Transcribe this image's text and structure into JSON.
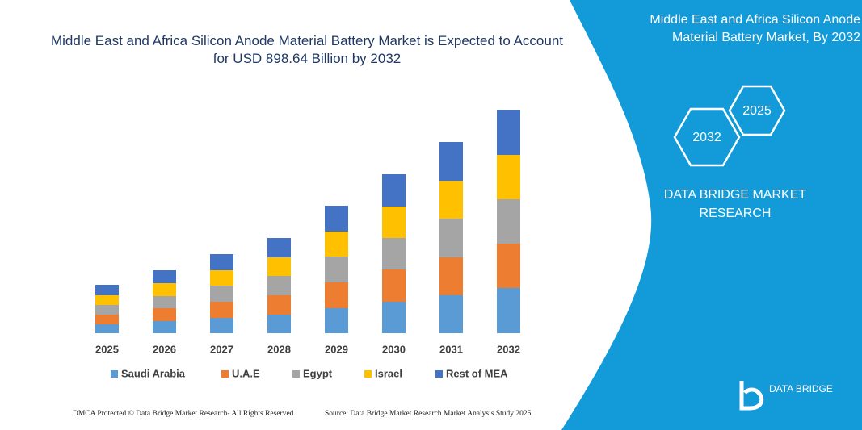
{
  "chart_data": {
    "type": "bar",
    "stacked": true,
    "title": "Middle East and Africa Silicon Anode Material Battery Market is Expected to Account for USD 898.64 Billion by 2032",
    "categories": [
      "2025",
      "2026",
      "2027",
      "2028",
      "2029",
      "2030",
      "2031",
      "2032"
    ],
    "series": [
      {
        "name": "Saudi Arabia",
        "color": "#5b9bd5",
        "values": [
          11,
          15,
          19,
          23,
          31,
          39,
          47,
          56
        ]
      },
      {
        "name": "U.A.E",
        "color": "#ed7d31",
        "values": [
          12,
          16,
          20,
          24,
          32,
          40,
          47,
          55
        ]
      },
      {
        "name": "Egypt",
        "color": "#a5a5a5",
        "values": [
          12,
          15,
          20,
          24,
          32,
          39,
          48,
          55
        ]
      },
      {
        "name": "Israel",
        "color": "#ffc000",
        "values": [
          12,
          16,
          19,
          23,
          31,
          39,
          47,
          55
        ]
      },
      {
        "name": "Rest of MEA",
        "color": "#4472c4",
        "values": [
          13,
          16,
          20,
          24,
          32,
          40,
          48,
          56
        ]
      }
    ],
    "ylim": [
      0,
      290
    ]
  },
  "panel": {
    "title": "Middle East and Africa Silicon Anode Material Battery Market, By 2032",
    "hexagons": [
      "2032",
      "2025"
    ],
    "brand": "DATA BRIDGE MARKET RESEARCH",
    "logo": "DATA BRIDGE"
  },
  "footer": {
    "copyright": "DMCA Protected © Data Bridge Market Research- All Rights Reserved.",
    "source": "Source: Data Bridge Market Research Market Analysis Study 2025"
  }
}
